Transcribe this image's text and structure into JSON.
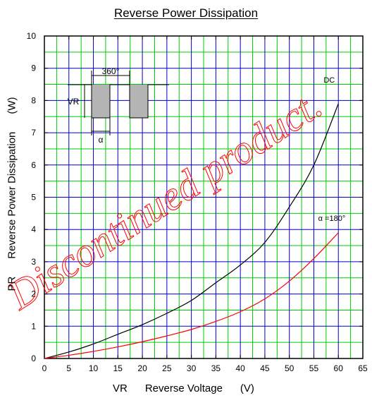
{
  "title": "Reverse Power Dissipation",
  "xlabel": "VR      Reverse Voltage      (V)",
  "ylabel": "PR      Reverse Power Dissipation      (W)",
  "watermark": "Discontinued product.",
  "inset": {
    "period_label": "360°",
    "voltage_label": "VR",
    "angle_label": "α"
  },
  "chart_data": {
    "type": "line",
    "title": "Reverse Power Dissipation",
    "xlabel": "VR      Reverse Voltage      (V)",
    "ylabel": "PR      Reverse Power Dissipation      (W)",
    "xlim": [
      0,
      65
    ],
    "ylim": [
      0,
      10
    ],
    "xticks": [
      0,
      5,
      10,
      15,
      20,
      25,
      30,
      35,
      40,
      45,
      50,
      55,
      60,
      65
    ],
    "yticks": [
      0,
      1,
      2,
      3,
      4,
      5,
      6,
      7,
      8,
      9,
      10
    ],
    "grid": true,
    "series": [
      {
        "name": "DC",
        "color": "#000000",
        "x": [
          0,
          5,
          10,
          15,
          20,
          25,
          30,
          35,
          40,
          45,
          50,
          55,
          60
        ],
        "y": [
          0,
          0.2,
          0.45,
          0.75,
          1.05,
          1.4,
          1.8,
          2.35,
          2.9,
          3.6,
          4.7,
          6.0,
          7.9
        ]
      },
      {
        "name": "α =180°",
        "color": "#ff0000",
        "x": [
          0,
          5,
          10,
          15,
          20,
          25,
          30,
          35,
          40,
          45,
          50,
          55,
          60
        ],
        "y": [
          0,
          0.1,
          0.22,
          0.36,
          0.52,
          0.7,
          0.9,
          1.15,
          1.45,
          1.85,
          2.4,
          3.1,
          3.9
        ]
      }
    ]
  }
}
